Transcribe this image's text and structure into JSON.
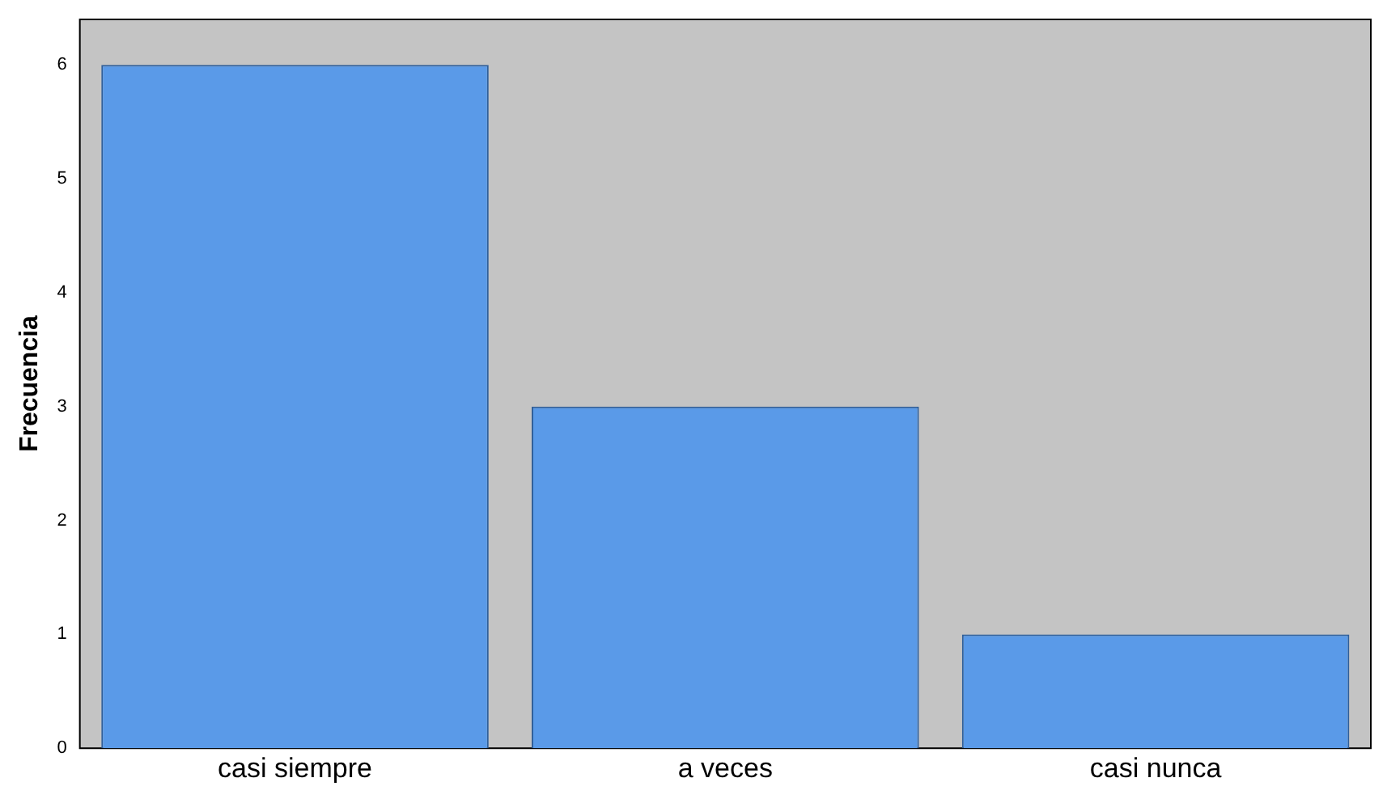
{
  "chart_data": {
    "type": "bar",
    "ylabel": "Frecuencia",
    "categories": [
      "casi siempre",
      "a veces",
      "casi nunca"
    ],
    "values": [
      6,
      3,
      1
    ],
    "color": "#5a9ae8",
    "ylim": [
      0,
      6.4
    ],
    "yticks": [
      0,
      1,
      2,
      3,
      4,
      5,
      6
    ],
    "grid": false
  }
}
